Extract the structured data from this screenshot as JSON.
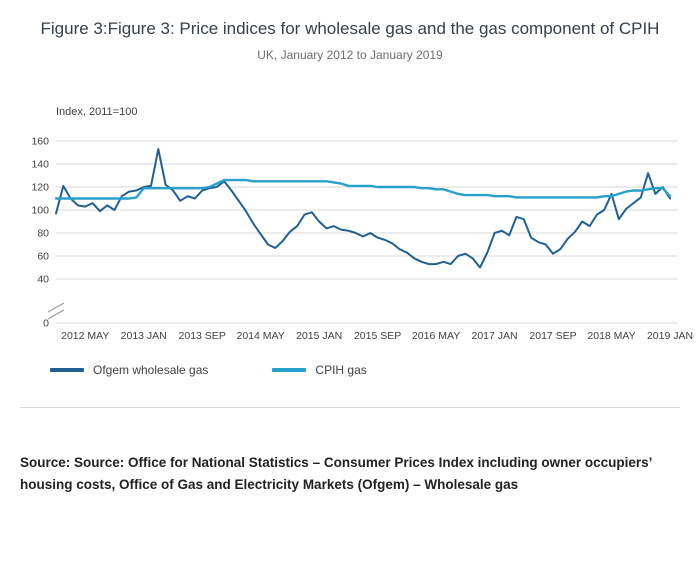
{
  "header": {
    "title": "Figure 3:Figure 3: Price indices for wholesale gas and the gas component of CPIH",
    "subtitle": "UK, January 2012 to January 2019"
  },
  "chart_data": {
    "type": "line",
    "title": "Figure 3: Price indices for wholesale gas and the gas component of CPIH",
    "subtitle": "UK, January 2012 to January 2019",
    "xlabel": "",
    "ylabel": "Index, 2011=100",
    "ylim": [
      0,
      170
    ],
    "y_ticks": [
      0,
      40,
      60,
      80,
      100,
      120,
      140,
      160
    ],
    "y_axis_break": true,
    "grid": "horizontal",
    "legend_position": "bottom",
    "x_unit": "month",
    "x_start": "2012 JAN",
    "x_end": "2019 JAN",
    "x_tick_labels": [
      "2012 MAY",
      "2013 JAN",
      "2013 SEP",
      "2014 MAY",
      "2015 JAN",
      "2015 SEP",
      "2016 MAY",
      "2017 JAN",
      "2017 SEP",
      "2018 MAY",
      "2019 JAN"
    ],
    "x_tick_indices": [
      4,
      12,
      20,
      28,
      36,
      44,
      52,
      60,
      68,
      76,
      84
    ],
    "series": [
      {
        "name": "Ofgem wholesale gas",
        "color": "#206095",
        "values": [
          97,
          121,
          110,
          104,
          103,
          106,
          99,
          104,
          100,
          112,
          116,
          117,
          120,
          121,
          153,
          122,
          117,
          108,
          112,
          110,
          117,
          119,
          120,
          125,
          117,
          108,
          99,
          88,
          79,
          70,
          67,
          73,
          81,
          86,
          96,
          98,
          90,
          84,
          86,
          83,
          82,
          80,
          77,
          80,
          76,
          74,
          71,
          66,
          63,
          58,
          55,
          53,
          53,
          55,
          53,
          60,
          62,
          58,
          50,
          63,
          80,
          82,
          78,
          94,
          92,
          76,
          72,
          70,
          62,
          66,
          75,
          81,
          90,
          86,
          96,
          100,
          114,
          92,
          101,
          106,
          111,
          132,
          114,
          120,
          110
        ]
      },
      {
        "name": "CPIH gas",
        "color": "#27A0CC",
        "values": [
          110,
          110,
          110,
          110,
          110,
          110,
          110,
          110,
          110,
          110,
          110,
          111,
          119,
          119,
          119,
          119,
          119,
          119,
          119,
          119,
          119,
          120,
          123,
          126,
          126,
          126,
          126,
          125,
          125,
          125,
          125,
          125,
          125,
          125,
          125,
          125,
          125,
          125,
          124,
          123,
          121,
          121,
          121,
          121,
          120,
          120,
          120,
          120,
          120,
          120,
          119,
          119,
          118,
          118,
          116,
          114,
          113,
          113,
          113,
          113,
          112,
          112,
          112,
          111,
          111,
          111,
          111,
          111,
          111,
          111,
          111,
          111,
          111,
          111,
          111,
          112,
          112,
          114,
          116,
          117,
          117,
          118,
          119,
          119,
          112
        ]
      }
    ]
  },
  "footer": {
    "source": "Source: Source: Office for National Statistics – Consumer Prices Index including owner occupiers’ housing costs, Office of Gas and Electricity Markets (Ofgem) – Wholesale gas"
  }
}
